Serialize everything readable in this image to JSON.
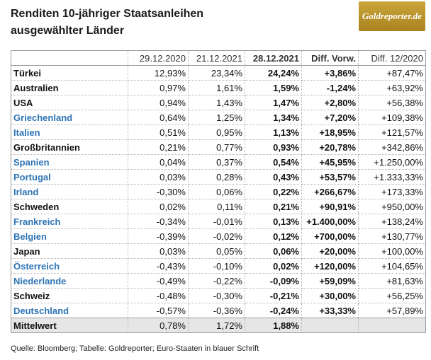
{
  "header": {
    "title_lines": [
      "Renditen 10-jähriger Staatsanleihen",
      "ausgewählter Länder"
    ],
    "logo": "Goldreporter.de"
  },
  "table": {
    "columns": [
      "29.12.2020",
      "21.12.2021",
      "28.12.2021",
      "Diff. Vorw.",
      "Diff. 12/2020"
    ],
    "bold_columns": [
      3,
      4
    ],
    "rows": [
      {
        "cells": [
          "Türkei",
          "12,93%",
          "23,34%",
          "24,24%",
          "+3,86%",
          "+87,47%"
        ],
        "euro": false
      },
      {
        "cells": [
          "Australien",
          "0,97%",
          "1,61%",
          "1,59%",
          "-1,24%",
          "+63,92%"
        ],
        "euro": false
      },
      {
        "cells": [
          "USA",
          "0,94%",
          "1,43%",
          "1,47%",
          "+2,80%",
          "+56,38%"
        ],
        "euro": false
      },
      {
        "cells": [
          "Griechenland",
          "0,64%",
          "1,25%",
          "1,34%",
          "+7,20%",
          "+109,38%"
        ],
        "euro": true
      },
      {
        "cells": [
          "Italien",
          "0,51%",
          "0,95%",
          "1,13%",
          "+18,95%",
          "+121,57%"
        ],
        "euro": true
      },
      {
        "cells": [
          "Großbritannien",
          "0,21%",
          "0,77%",
          "0,93%",
          "+20,78%",
          "+342,86%"
        ],
        "euro": false
      },
      {
        "cells": [
          "Spanien",
          "0,04%",
          "0,37%",
          "0,54%",
          "+45,95%",
          "+1.250,00%"
        ],
        "euro": true
      },
      {
        "cells": [
          "Portugal",
          "0,03%",
          "0,28%",
          "0,43%",
          "+53,57%",
          "+1.333,33%"
        ],
        "euro": true
      },
      {
        "cells": [
          "Irland",
          "-0,30%",
          "0,06%",
          "0,22%",
          "+266,67%",
          "+173,33%"
        ],
        "euro": true
      },
      {
        "cells": [
          "Schweden",
          "0,02%",
          "0,11%",
          "0,21%",
          "+90,91%",
          "+950,00%"
        ],
        "euro": false
      },
      {
        "cells": [
          "Frankreich",
          "-0,34%",
          "-0,01%",
          "0,13%",
          "+1.400,00%",
          "+138,24%"
        ],
        "euro": true
      },
      {
        "cells": [
          "Belgien",
          "-0,39%",
          "-0,02%",
          "0,12%",
          "+700,00%",
          "+130,77%"
        ],
        "euro": true
      },
      {
        "cells": [
          "Japan",
          "0,03%",
          "0,05%",
          "0,06%",
          "+20,00%",
          "+100,00%"
        ],
        "euro": false
      },
      {
        "cells": [
          "Österreich",
          "-0,43%",
          "-0,10%",
          "0,02%",
          "+120,00%",
          "+104,65%"
        ],
        "euro": true
      },
      {
        "cells": [
          "Niederlande",
          "-0,49%",
          "-0,22%",
          "-0,09%",
          "+59,09%",
          "+81,63%"
        ],
        "euro": true
      },
      {
        "cells": [
          "Schweiz",
          "-0,48%",
          "-0,30%",
          "-0,21%",
          "+30,00%",
          "+56,25%"
        ],
        "euro": false
      },
      {
        "cells": [
          "Deutschland",
          "-0,57%",
          "-0,36%",
          "-0,24%",
          "+33,33%",
          "+57,89%"
        ],
        "euro": true
      }
    ],
    "summary": [
      "Mittelwert",
      "0,78%",
      "1,72%",
      "1,88%"
    ]
  },
  "source": "Quelle: Bloomberg; Tabelle: Goldreporter; Euro-Staaten in blauer Schrift"
}
